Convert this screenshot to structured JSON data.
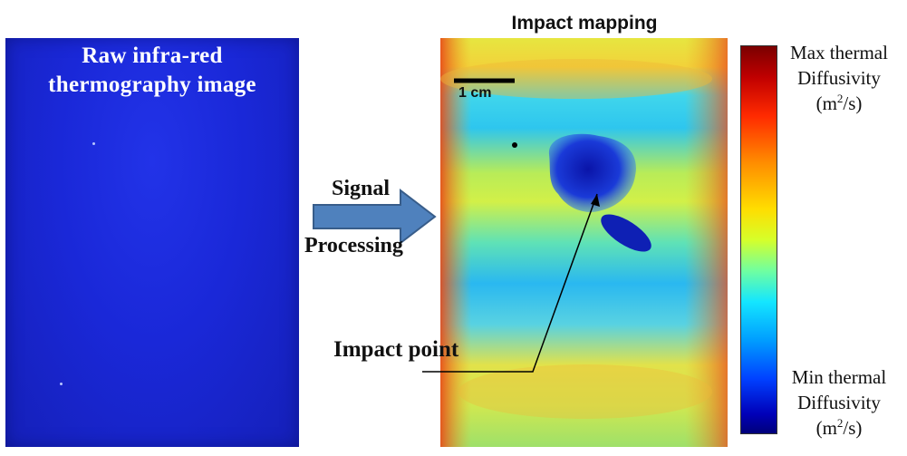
{
  "raw_panel": {
    "title_line1": "Raw infra-red",
    "title_line2": "thermography  image"
  },
  "arrow": {
    "label_top": "Signal",
    "label_bottom": "Processing"
  },
  "impact_map": {
    "title": "Impact mapping",
    "scale_bar": "1 cm"
  },
  "annotation": {
    "impact_point": "Impact point"
  },
  "colorbar": {
    "max_line1": "Max thermal",
    "max_line2": "Diffusivity",
    "min_line1": "Min thermal",
    "min_line2": "Diffusivity",
    "unit_prefix": "(m",
    "unit_exp": "2",
    "unit_suffix": "/s)"
  },
  "colors": {
    "raw_blue": "#1a28d8",
    "arrow_fill": "#4f81bd",
    "arrow_stroke": "#385d8a"
  }
}
